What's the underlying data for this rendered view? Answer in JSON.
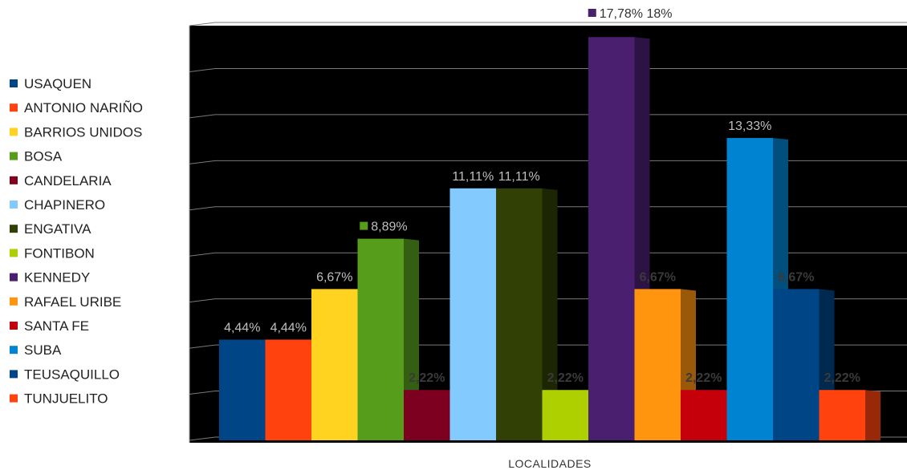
{
  "chart_data": {
    "type": "bar",
    "xlabel": "LOCALIDADES",
    "ylabel": "",
    "ylim": [
      0,
      18
    ],
    "grid": true,
    "legend_position": "left",
    "series": [
      {
        "name": "USAQUEN",
        "value": 4.44,
        "label": "4,44%",
        "color": "#004586",
        "label_color": "#bfbfbf",
        "bold": false
      },
      {
        "name": "ANTONIO NARIÑO",
        "value": 4.44,
        "label": "4,44%",
        "color": "#ff420e",
        "label_color": "#bfbfbf",
        "bold": false
      },
      {
        "name": "BARRIOS UNIDOS",
        "value": 6.67,
        "label": "6,67%",
        "color": "#ffd320",
        "label_color": "#bfbfbf",
        "bold": false
      },
      {
        "name": "BOSA",
        "value": 8.89,
        "label": "8,89%",
        "color": "#579d1c",
        "label_color": "#bfbfbf",
        "bold": false,
        "label_marker": true
      },
      {
        "name": "CANDELARIA",
        "value": 2.22,
        "label": "2,22%",
        "color": "#7e0021",
        "label_color": "#3a3a3a",
        "bold": true
      },
      {
        "name": "CHAPINERO",
        "value": 11.11,
        "label": "11,11%",
        "color": "#83caff",
        "label_color": "#bfbfbf",
        "bold": false
      },
      {
        "name": "ENGATIVA",
        "value": 11.11,
        "label": "11,11%",
        "color": "#314004",
        "label_color": "#bfbfbf",
        "bold": false
      },
      {
        "name": "FONTIBON",
        "value": 2.22,
        "label": "2,22%",
        "color": "#aecf00",
        "label_color": "#3a3a3a",
        "bold": true
      },
      {
        "name": "KENNEDY",
        "value": 17.78,
        "label": "17,78% 18%",
        "color": "#4b1f6f",
        "label_color": "#333333",
        "bold": false,
        "label_marker": true
      },
      {
        "name": "RAFAEL URIBE",
        "value": 6.67,
        "label": "6,67%",
        "color": "#ff950e",
        "label_color": "#3a3a3a",
        "bold": true
      },
      {
        "name": "SANTA FE",
        "value": 2.22,
        "label": "2,22%",
        "color": "#c5000b",
        "label_color": "#3a3a3a",
        "bold": true
      },
      {
        "name": "SUBA",
        "value": 13.33,
        "label": "13,33%",
        "color": "#0084d1",
        "label_color": "#bfbfbf",
        "bold": false
      },
      {
        "name": "TEUSAQUILLO",
        "value": 6.67,
        "label": "6,67%",
        "color": "#004586",
        "label_color": "#3a3a3a",
        "bold": true
      },
      {
        "name": "TUNJUELITO",
        "value": 2.22,
        "label": "2,22%",
        "color": "#ff420e",
        "label_color": "#3a3a3a",
        "bold": true
      }
    ]
  }
}
